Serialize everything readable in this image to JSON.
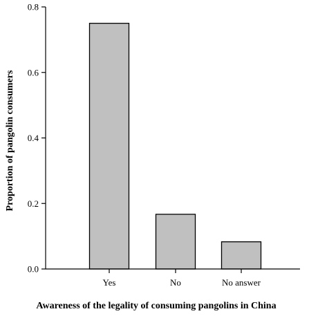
{
  "chart_data": {
    "type": "bar",
    "title": "",
    "xlabel": "Awareness of the legality of consuming pangolins in China",
    "ylabel": "Proportion of pangolin consumers",
    "categories": [
      "Yes",
      "No",
      "No answer"
    ],
    "values": [
      0.75,
      0.167,
      0.083
    ],
    "ylim": [
      0,
      0.8
    ],
    "yticks": [
      0.0,
      0.2,
      0.4,
      0.6,
      0.8
    ],
    "ytick_labels": [
      "0.0",
      "0.2",
      "0.4",
      "0.6",
      "0.8"
    ],
    "grid": false,
    "legend": "none",
    "colors": {
      "bar_fill": "#c0c0c0",
      "bar_stroke": "#000000",
      "axis": "#000000"
    }
  }
}
